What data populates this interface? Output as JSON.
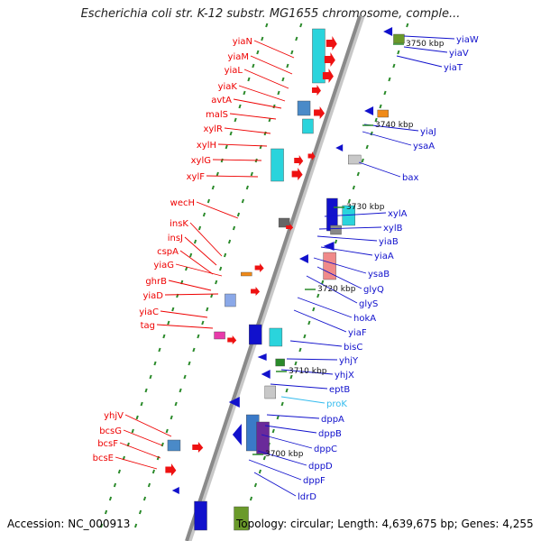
{
  "title": "Escherichia coli str. K-12 substr. MG1655 chromosome, comple...",
  "footer": {
    "accession": "Accession: NC_000913",
    "topology": "Topology: circular; Length: 4,639,675 bp; Genes: 4,255"
  },
  "colors": {
    "left_label": "#ee0000",
    "right_label": "#1010cc",
    "special_label": "#33bbee",
    "axis": "#8a8a8a",
    "tick": "#2a8a2a"
  },
  "scale_marks": [
    "3750 kbp",
    "3740 kbp",
    "3730 kbp",
    "3720 kbp",
    "3710 kbp",
    "3700 kbp"
  ],
  "left_labels": [
    "yiaN",
    "yiaM",
    "yiaL",
    "yiaK",
    "avtA",
    "malS",
    "xylR",
    "xylH",
    "xylG",
    "xylF",
    "wecH",
    "insK",
    "insJ",
    "cspA",
    "yiaG",
    "ghrB",
    "yiaD",
    "yiaC",
    "tag",
    "yhjV",
    "bcsG",
    "bcsF",
    "bcsE"
  ],
  "right_labels": [
    "yiaW",
    "yiaV",
    "yiaT",
    "yiaJ",
    "ysaA",
    "bax",
    "xylA",
    "xylB",
    "yiaB",
    "yiaA",
    "ysaB",
    "glyQ",
    "glyS",
    "hokA",
    "yiaF",
    "bisC",
    "yhjY",
    "yhjX",
    "eptB",
    "proK",
    "dppA",
    "dppB",
    "dppC",
    "dppD",
    "dppF",
    "ldrD"
  ]
}
